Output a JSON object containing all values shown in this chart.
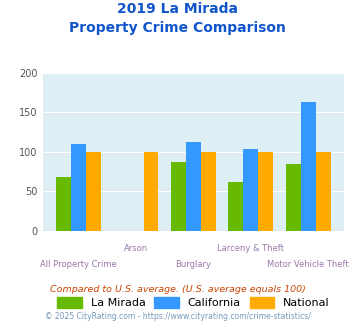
{
  "title_line1": "2019 La Mirada",
  "title_line2": "Property Crime Comparison",
  "categories": [
    "All Property Crime",
    "Arson",
    "Burglary",
    "Larceny & Theft",
    "Motor Vehicle Theft"
  ],
  "la_mirada": [
    68,
    0,
    87,
    62,
    85
  ],
  "california": [
    110,
    0,
    113,
    103,
    163
  ],
  "national": [
    100,
    100,
    100,
    100,
    100
  ],
  "colors": {
    "la_mirada": "#66bb00",
    "california": "#3399ff",
    "national": "#ffaa00"
  },
  "ylim": [
    0,
    200
  ],
  "yticks": [
    0,
    50,
    100,
    150,
    200
  ],
  "plot_bg": "#ddeef5",
  "title_color": "#1155cc",
  "xlabel_color": "#9977aa",
  "legend_labels": [
    "La Mirada",
    "California",
    "National"
  ],
  "footnote1": "Compared to U.S. average. (U.S. average equals 100)",
  "footnote2": "© 2025 CityRating.com - https://www.cityrating.com/crime-statistics/",
  "footnote1_color": "#cc4400",
  "footnote2_color": "#7799bb"
}
